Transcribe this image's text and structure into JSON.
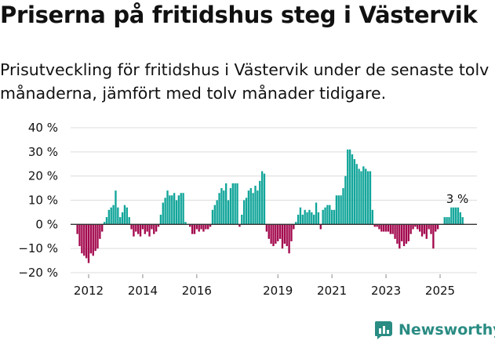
{
  "title": "Priserna på fritidshus steg i Västervik",
  "subtitle": "Prisutveckling för fritidshus i Västervik under de senaste tolv månaderna, jämfört med tolv månader tidigare.",
  "brand": {
    "name": "Newsworthy",
    "color": "#2a8c83"
  },
  "colors": {
    "positive": "#12a59a",
    "positive_light": "#ffffff",
    "negative": "#a3094e",
    "grid": "#dcdcdc",
    "zero": "#333333"
  },
  "chart_data": {
    "type": "bar",
    "title": "Priserna på fritidshus steg i Västervik",
    "xlabel": "",
    "ylabel": "",
    "ylim": [
      -20,
      40
    ],
    "y_ticks": [
      -20,
      -10,
      0,
      10,
      20,
      30,
      40
    ],
    "y_tick_labels": [
      "−20 %",
      "−10 %",
      "0 %",
      "10 %",
      "20 %",
      "30 %",
      "40 %"
    ],
    "x_tick_labels": [
      {
        "label": "2012",
        "year": 2012
      },
      {
        "label": "2014",
        "year": 2014
      },
      {
        "label": "2016",
        "year": 2016
      },
      {
        "label": "2019",
        "year": 2019
      },
      {
        "label": "2021",
        "year": 2021
      },
      {
        "label": "2023",
        "year": 2023
      },
      {
        "label": "2025",
        "year": 2025
      }
    ],
    "start": {
      "year": 2011,
      "month": 8
    },
    "last_value_label": "3 %",
    "values": [
      -4,
      -9,
      -12,
      -13,
      -14,
      -16,
      -12,
      -13,
      -11,
      -10,
      -6,
      -3,
      1,
      3,
      6,
      7,
      8,
      14,
      7,
      3,
      5,
      8,
      7,
      3,
      -2,
      -5,
      -3,
      -4,
      -5,
      -2,
      -4,
      -3,
      -5,
      -2,
      -4,
      -3,
      -1,
      4,
      9,
      11,
      14,
      12,
      12,
      13,
      10,
      12,
      13,
      13,
      1,
      0,
      -1,
      -4,
      -4,
      -2,
      -3,
      -2,
      -3,
      -2,
      -2,
      -1,
      6,
      8,
      10,
      13,
      15,
      14,
      17,
      10,
      15,
      17,
      17,
      17,
      -1,
      4,
      10,
      11,
      14,
      15,
      13,
      16,
      14,
      18,
      22,
      21,
      -3,
      -6,
      -8,
      -9,
      -8,
      -7,
      -6,
      -10,
      -8,
      -9,
      -12,
      -7,
      -2,
      1,
      4,
      7,
      4,
      6,
      5,
      6,
      5,
      4,
      9,
      5,
      -2,
      6,
      7,
      8,
      8,
      6,
      6,
      12,
      12,
      12,
      15,
      20,
      31,
      31,
      29,
      27,
      25,
      23,
      22,
      24,
      23,
      22,
      22,
      6,
      -1,
      -1,
      -2,
      -3,
      -3,
      -3,
      -3,
      -4,
      -4,
      -6,
      -8,
      -10,
      -7,
      -9,
      -8,
      -7,
      -4,
      -2,
      -1,
      -2,
      -3,
      -5,
      -4,
      -6,
      -2,
      -4,
      -10,
      -3,
      -2,
      0,
      0,
      3,
      3,
      3,
      7,
      7,
      7,
      7,
      5,
      3
    ]
  }
}
